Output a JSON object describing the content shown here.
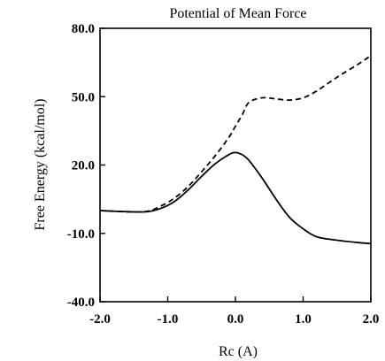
{
  "chart_data": {
    "type": "line",
    "title": "Potential of Mean Force",
    "xlabel": "Rc (A)",
    "ylabel": "Free Energy (kcal/mol)",
    "xlim": [
      -2.0,
      2.0
    ],
    "ylim": [
      -40.0,
      80.0
    ],
    "xticks": [
      "-2.0",
      "-1.0",
      "0.0",
      "1.0",
      "2.0"
    ],
    "yticks": [
      "80.0",
      "50.0",
      "20.0",
      "-10.0",
      "-40.0"
    ],
    "grid": false,
    "legend": "none",
    "series": [
      {
        "style": "solid",
        "x": [
          -2.0,
          -1.6,
          -1.3,
          -1.1,
          -0.9,
          -0.7,
          -0.5,
          -0.3,
          -0.1,
          0.0,
          0.1,
          0.2,
          0.4,
          0.6,
          0.8,
          1.0,
          1.2,
          1.5,
          1.8,
          2.0
        ],
        "y": [
          0.0,
          -0.5,
          -0.5,
          1.0,
          4.0,
          9.0,
          15.0,
          20.5,
          24.5,
          25.5,
          24.5,
          22.0,
          14.0,
          5.0,
          -3.0,
          -8.0,
          -11.5,
          -13.0,
          -14.0,
          -14.5
        ]
      },
      {
        "style": "dashed",
        "x": [
          -2.0,
          -1.6,
          -1.3,
          -1.1,
          -0.9,
          -0.7,
          -0.5,
          -0.3,
          -0.1,
          0.0,
          0.1,
          0.2,
          0.4,
          0.6,
          0.8,
          1.0,
          1.2,
          1.5,
          1.8,
          2.0
        ],
        "y": [
          0.0,
          -0.5,
          -0.3,
          2.0,
          5.5,
          10.5,
          17.0,
          24.0,
          32.0,
          37.0,
          42.0,
          47.5,
          49.5,
          49.0,
          48.5,
          49.5,
          52.5,
          58.5,
          64.0,
          68.0
        ]
      }
    ]
  }
}
